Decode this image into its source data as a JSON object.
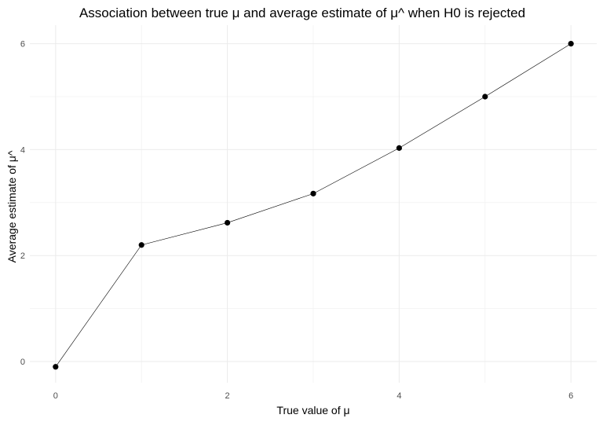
{
  "chart_data": {
    "type": "line",
    "title": "Association between true μ and average estimate of μ^ when H0 is rejected",
    "xlabel": "True value of μ",
    "ylabel": "Average estimate of μ^",
    "x": [
      0,
      1,
      2,
      3,
      4,
      5,
      6
    ],
    "series": [
      {
        "values": [
          -0.1,
          2.2,
          2.62,
          3.17,
          4.03,
          5.0,
          6.0
        ]
      }
    ],
    "xlim": [
      -0.3,
      6.3
    ],
    "ylim": [
      -0.4,
      6.35
    ],
    "xticks": [
      0,
      2,
      4,
      6
    ],
    "xtick_labels": [
      "0",
      "2",
      "4",
      "6"
    ],
    "yticks": [
      0,
      2,
      4,
      6
    ],
    "ytick_labels": [
      "0",
      "2",
      "4",
      "6"
    ],
    "grid": true,
    "legend": "none",
    "colors": {
      "line": "#000000",
      "points": "#000000",
      "grid": "#ebebeb"
    }
  }
}
